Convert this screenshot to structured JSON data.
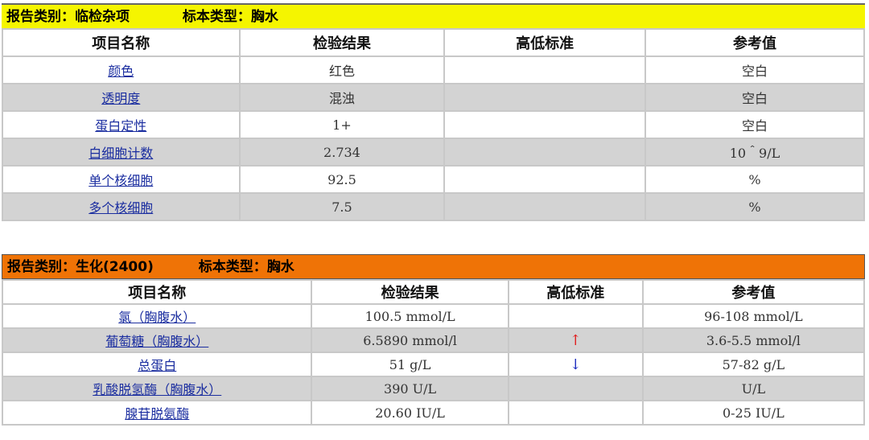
{
  "reports": [
    {
      "category_label": "报告类别：临检杂项",
      "specimen_label": "标本类型：胸水",
      "bar_color": "#f5f500",
      "columns": [
        "项目名称",
        "检验结果",
        "高低标准",
        "参考值"
      ],
      "rows": [
        {
          "name": "颜色",
          "result": "红色",
          "flag": "",
          "reference": "空白"
        },
        {
          "name": "透明度",
          "result": "混浊",
          "flag": "",
          "reference": "空白"
        },
        {
          "name": "蛋白定性",
          "result": "1+",
          "flag": "",
          "reference": "空白"
        },
        {
          "name": "白细胞计数",
          "result": "2.734",
          "flag": "",
          "reference": "10＾9/L"
        },
        {
          "name": "单个核细胞",
          "result": "92.5",
          "flag": "",
          "reference": "%"
        },
        {
          "name": "多个核细胞",
          "result": "7.5",
          "flag": "",
          "reference": "%"
        }
      ]
    },
    {
      "category_label": "报告类别：生化(2400)",
      "specimen_label": "标本类型：胸水",
      "bar_color": "#ef7306",
      "columns": [
        "项目名称",
        "检验结果",
        "高低标准",
        "参考值"
      ],
      "rows": [
        {
          "name": "氯（胸腹水）",
          "result": "100.5  mmol/L",
          "flag": "",
          "reference": "96-108   mmol/L"
        },
        {
          "name": "葡萄糖（胸腹水）",
          "result": "6.5890  mmol/l",
          "flag": "↑",
          "flag_type": "high",
          "reference": "3.6-5.5   mmol/l"
        },
        {
          "name": "总蛋白",
          "result": "51  g/L",
          "flag": "↓",
          "flag_type": "low",
          "reference": "57-82   g/L"
        },
        {
          "name": "乳酸脱氢酶（胸腹水）",
          "result": "390  U/L",
          "flag": "",
          "reference": "U/L"
        },
        {
          "name": "腺苷脱氨酶",
          "result": "20.60  IU/L",
          "flag": "",
          "reference": "0-25   IU/L"
        }
      ]
    }
  ]
}
